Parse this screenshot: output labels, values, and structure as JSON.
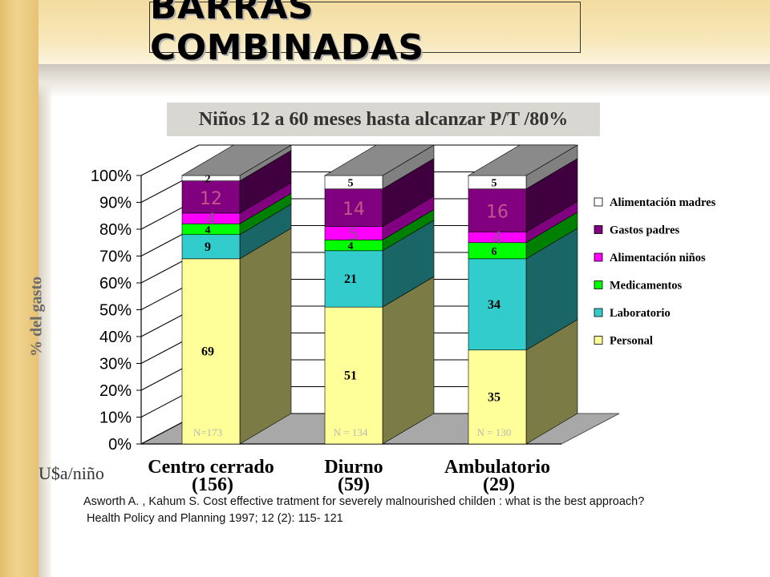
{
  "slide": {
    "title": "BARRAS COMBINADAS",
    "unit_label": "U$a/niño",
    "citation_line1": "Asworth A. , Kahum S. Cost effective tratment for severely malnourished childen : what is the best approach?",
    "citation_line2": "Health Policy and Planning 1997; 12 (2): 115- 121"
  },
  "chart_data": {
    "type": "bar",
    "stacked": true,
    "percent_stacked": true,
    "three_d": true,
    "title": "Niños 12 a 60 meses  hasta alcanzar P/T /80%",
    "ylabel": "% del gasto",
    "xlabel": "",
    "ylim": [
      0,
      100
    ],
    "yticks": [
      "0%",
      "10%",
      "20%",
      "30%",
      "40%",
      "50%",
      "60%",
      "70%",
      "80%",
      "90%",
      "100%"
    ],
    "legend_position": "right",
    "categories": [
      "Centro cerrado",
      "Diurno",
      "Ambulatorio"
    ],
    "category_costs": [
      "(156)",
      "(59)",
      "(29)"
    ],
    "sample_sizes": [
      "N=173",
      "N = 134",
      "N = 130"
    ],
    "series": [
      {
        "name": "Personal",
        "color": "#ffff99",
        "side_color": "#7b7b45",
        "values": [
          69,
          51,
          35
        ],
        "labels": [
          "69",
          "51",
          "35"
        ]
      },
      {
        "name": "Laboratorio",
        "color": "#33cccc",
        "side_color": "#1a6666",
        "values": [
          9,
          21,
          34
        ],
        "labels": [
          "9",
          "21",
          "34"
        ]
      },
      {
        "name": "Medicamentos",
        "color": "#00ff00",
        "side_color": "#008000",
        "values": [
          4,
          4,
          6
        ],
        "labels": [
          "4",
          "4",
          "6"
        ]
      },
      {
        "name": "Alimentación niños",
        "color": "#ff00ff",
        "side_color": "#800080",
        "values": [
          4,
          5,
          4
        ],
        "labels": [
          "4",
          "5",
          "4"
        ]
      },
      {
        "name": "Gastos padres",
        "color": "#800080",
        "side_color": "#400040",
        "values": [
          12,
          14,
          16
        ],
        "labels": [
          "12",
          "14",
          "16"
        ]
      },
      {
        "name": "Alimentación madres",
        "color": "#ffffff",
        "side_color": "#808080",
        "values": [
          2,
          5,
          5
        ],
        "labels": [
          "2",
          "5",
          "5"
        ]
      }
    ]
  }
}
